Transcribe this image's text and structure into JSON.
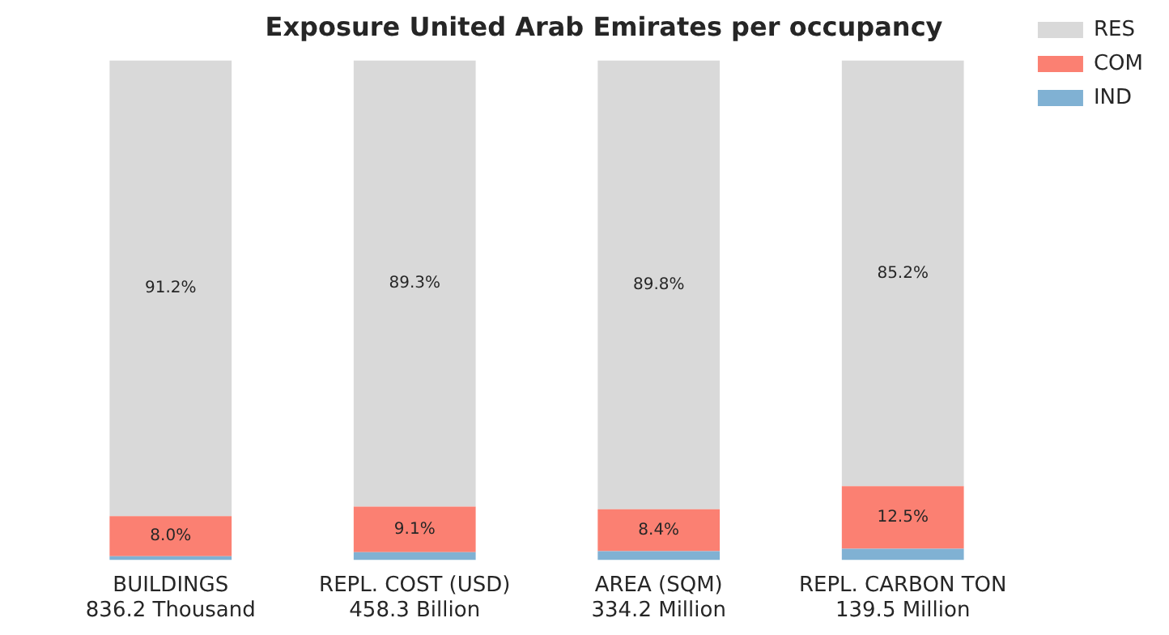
{
  "chart_data": {
    "type": "bar",
    "stacked": true,
    "title": "Exposure United Arab Emirates per occupancy",
    "categories": [
      "BUILDINGS\n836.2 Thousand",
      "REPL. COST (USD)\n458.3 Billion",
      "AREA (SQM)\n334.2 Million",
      "REPL. CARBON TON\n139.5 Million"
    ],
    "series": [
      {
        "name": "IND",
        "color": "#80b1d3",
        "values": [
          0.8,
          1.6,
          1.8,
          2.3
        ]
      },
      {
        "name": "COM",
        "color": "#fb8072",
        "values": [
          8.0,
          9.1,
          8.4,
          12.5
        ],
        "value_labels": [
          "8.0%",
          "9.1%",
          "8.4%",
          "12.5%"
        ]
      },
      {
        "name": "RES",
        "color": "#d9d9d9",
        "values": [
          91.2,
          89.3,
          89.8,
          85.2
        ],
        "value_labels": [
          "91.2%",
          "89.3%",
          "89.8%",
          "85.2%"
        ]
      }
    ],
    "ylim": [
      0,
      100
    ],
    "tick_labels": "x",
    "grid": false,
    "legend": "top right"
  }
}
